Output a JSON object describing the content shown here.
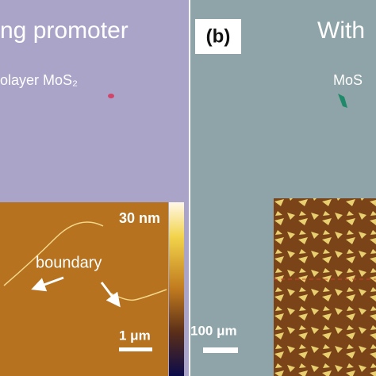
{
  "panel_a": {
    "title": "ng promoter",
    "sample_label": "olayer MoS₂",
    "colorbar_label": "30 nm",
    "annotation": "boundary",
    "scale_bar": "1 μm"
  },
  "panel_b": {
    "panel_label": "(b)",
    "title": "With",
    "sample_label": "MoS",
    "scale_bar": "100 μm"
  }
}
